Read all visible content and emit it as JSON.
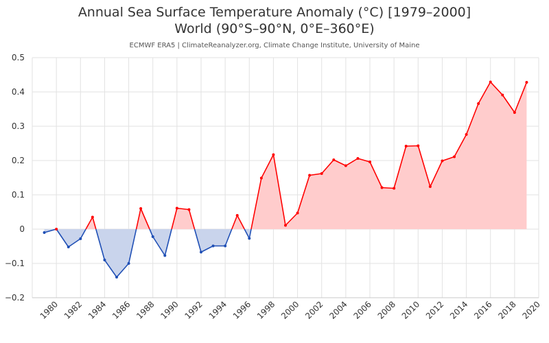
{
  "title_line1": "Annual Sea Surface Temperature Anomaly (°C) [1979–2000]",
  "title_line2": "World (90°S–90°N, 0°E–360°E)",
  "source": "ECMWF ERA5 | ClimateReanalyzer.org, Climate Change Institute, University of Maine",
  "chart_data": {
    "type": "area",
    "title": "Annual Sea Surface Temperature Anomaly (°C) [1979–2000]",
    "subtitle": "World (90°S–90°N, 0°E–360°E)",
    "xlabel": "",
    "ylabel": "",
    "xlim": [
      1978,
      2020
    ],
    "ylim": [
      -0.2,
      0.5
    ],
    "grid": true,
    "x_ticks": [
      1980,
      1982,
      1984,
      1986,
      1988,
      1990,
      1992,
      1994,
      1996,
      1998,
      2000,
      2002,
      2004,
      2006,
      2008,
      2010,
      2012,
      2014,
      2016,
      2018,
      2020
    ],
    "y_ticks": [
      -0.2,
      -0.1,
      0,
      0.1,
      0.2,
      0.3,
      0.4,
      0.5
    ],
    "y_tick_labels": [
      "−0.2",
      "−0.1",
      "0",
      "0.1",
      "0.2",
      "0.3",
      "0.4",
      "0.5"
    ],
    "x": [
      1979,
      1980,
      1981,
      1982,
      1983,
      1984,
      1985,
      1986,
      1987,
      1988,
      1989,
      1990,
      1991,
      1992,
      1993,
      1994,
      1995,
      1996,
      1997,
      1998,
      1999,
      2000,
      2001,
      2002,
      2003,
      2004,
      2005,
      2006,
      2007,
      2008,
      2009,
      2010,
      2011,
      2012,
      2013,
      2014,
      2015,
      2016,
      2017,
      2018,
      2019
    ],
    "values": [
      -0.01,
      0.0,
      -0.052,
      -0.028,
      0.035,
      -0.09,
      -0.14,
      -0.1,
      0.06,
      -0.022,
      -0.077,
      0.061,
      0.057,
      -0.067,
      -0.049,
      -0.049,
      0.04,
      -0.027,
      0.149,
      0.217,
      0.011,
      0.047,
      0.157,
      0.162,
      0.202,
      0.185,
      0.206,
      0.196,
      0.121,
      0.119,
      0.242,
      0.243,
      0.124,
      0.199,
      0.211,
      0.276,
      0.366,
      0.429,
      0.391,
      0.34,
      0.428
    ],
    "colors": {
      "positive_line": "#ff0000",
      "positive_fill": "#ffcccc",
      "negative_line": "#1f4fb5",
      "negative_fill": "#c9d4ec"
    }
  }
}
